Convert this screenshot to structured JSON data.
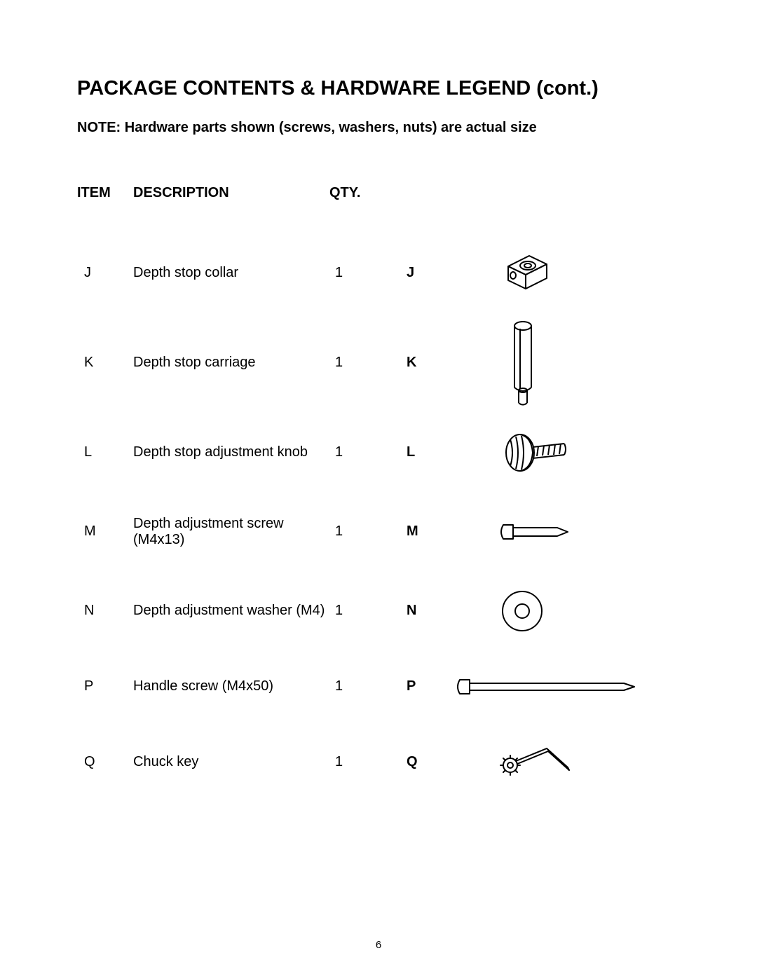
{
  "title": "PACKAGE CONTENTS & HARDWARE LEGEND (cont.)",
  "note": "NOTE: Hardware parts shown (screws, washers, nuts) are actual size",
  "columns": {
    "item": "ITEM",
    "description": "DESCRIPTION",
    "qty": "QTY."
  },
  "page_number": "6",
  "stroke_color": "#000000",
  "stroke_width": 2,
  "rows": [
    {
      "item": "J",
      "description": "Depth stop collar",
      "qty": "1",
      "label": "J",
      "icon": "collar"
    },
    {
      "item": "K",
      "description": "Depth stop carriage",
      "qty": "1",
      "label": "K",
      "icon": "carriage"
    },
    {
      "item": "L",
      "description": "Depth stop adjustment knob",
      "qty": "1",
      "label": "L",
      "icon": "knob"
    },
    {
      "item": "M",
      "description": "Depth adjustment screw (M4x13)",
      "qty": "1",
      "label": "M",
      "icon": "screw-short"
    },
    {
      "item": "N",
      "description": "Depth adjustment washer (M4)",
      "qty": "1",
      "label": "N",
      "icon": "washer"
    },
    {
      "item": "P",
      "description": "Handle screw (M4x50)",
      "qty": "1",
      "label": "P",
      "icon": "screw-long"
    },
    {
      "item": "Q",
      "description": "Chuck key",
      "qty": "1",
      "label": "Q",
      "icon": "chuck-key"
    }
  ]
}
